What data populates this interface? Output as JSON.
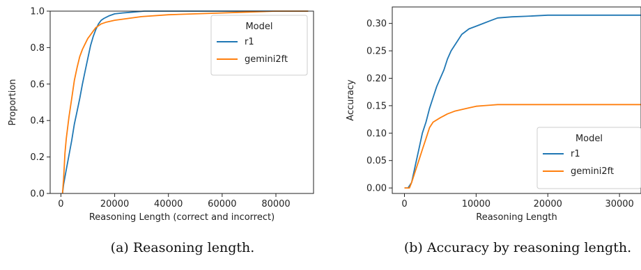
{
  "chart_data": [
    {
      "type": "line",
      "caption": "(a) Reasoning length.",
      "xlabel": "Reasoning Length (correct and incorrect)",
      "ylabel": "Proportion",
      "xlim": [
        -4000,
        94000
      ],
      "ylim": [
        0,
        1.0
      ],
      "xticks": [
        0,
        20000,
        40000,
        60000,
        80000
      ],
      "xtick_labels": [
        "0",
        "20000",
        "40000",
        "60000",
        "80000"
      ],
      "yticks": [
        0,
        0.2,
        0.4,
        0.6,
        0.8,
        1.0
      ],
      "ytick_labels": [
        "0.0",
        "0.2",
        "0.4",
        "0.6",
        "0.8",
        "1.0"
      ],
      "grid": false,
      "legend": {
        "title": "Model",
        "placement": "top-right"
      },
      "series": [
        {
          "name": "r1",
          "color": "#1f77b4",
          "points": [
            [
              600,
              0
            ],
            [
              1000,
              0.05
            ],
            [
              2000,
              0.13
            ],
            [
              3000,
              0.21
            ],
            [
              4000,
              0.29
            ],
            [
              5000,
              0.38
            ],
            [
              6000,
              0.45
            ],
            [
              7000,
              0.52
            ],
            [
              8000,
              0.6
            ],
            [
              9000,
              0.67
            ],
            [
              10000,
              0.74
            ],
            [
              11000,
              0.81
            ],
            [
              12000,
              0.86
            ],
            [
              13000,
              0.9
            ],
            [
              14000,
              0.93
            ],
            [
              15000,
              0.95
            ],
            [
              16000,
              0.96
            ],
            [
              18000,
              0.975
            ],
            [
              20000,
              0.985
            ],
            [
              23000,
              0.99
            ],
            [
              27000,
              0.995
            ],
            [
              31000,
              1.0
            ],
            [
              92000,
              1.0
            ]
          ]
        },
        {
          "name": "gemini2ft",
          "color": "#ff7f0e",
          "points": [
            [
              600,
              0
            ],
            [
              1000,
              0.08
            ],
            [
              1500,
              0.22
            ],
            [
              2000,
              0.3
            ],
            [
              3000,
              0.42
            ],
            [
              4000,
              0.52
            ],
            [
              5000,
              0.62
            ],
            [
              6000,
              0.69
            ],
            [
              7000,
              0.75
            ],
            [
              8000,
              0.79
            ],
            [
              9000,
              0.82
            ],
            [
              10000,
              0.85
            ],
            [
              11000,
              0.87
            ],
            [
              12000,
              0.89
            ],
            [
              13000,
              0.91
            ],
            [
              15000,
              0.93
            ],
            [
              17000,
              0.94
            ],
            [
              20000,
              0.95
            ],
            [
              25000,
              0.96
            ],
            [
              30000,
              0.97
            ],
            [
              40000,
              0.98
            ],
            [
              50000,
              0.985
            ],
            [
              60000,
              0.99
            ],
            [
              70000,
              0.995
            ],
            [
              80000,
              1.0
            ],
            [
              92000,
              1.0
            ]
          ]
        }
      ]
    },
    {
      "type": "line",
      "caption": "(b) Accuracy by reasoning length.",
      "xlabel": "Reasoning Length",
      "ylabel": "Accuracy",
      "xlim": [
        -1700,
        33000
      ],
      "ylim": [
        -0.01,
        0.33
      ],
      "xticks": [
        0,
        10000,
        20000,
        30000
      ],
      "xtick_labels": [
        "0",
        "10000",
        "20000",
        "30000"
      ],
      "yticks": [
        0,
        0.05,
        0.1,
        0.15,
        0.2,
        0.25,
        0.3
      ],
      "ytick_labels": [
        "0.00",
        "0.05",
        "0.10",
        "0.15",
        "0.20",
        "0.25",
        "0.30"
      ],
      "grid": false,
      "legend": {
        "title": "Model",
        "placement": "bottom-right"
      },
      "series": [
        {
          "name": "r1",
          "color": "#1f77b4",
          "points": [
            [
              0,
              0
            ],
            [
              500,
              0
            ],
            [
              1000,
              0.01
            ],
            [
              1500,
              0.04
            ],
            [
              2000,
              0.07
            ],
            [
              2500,
              0.1
            ],
            [
              3000,
              0.12
            ],
            [
              3500,
              0.145
            ],
            [
              4000,
              0.165
            ],
            [
              4500,
              0.185
            ],
            [
              5000,
              0.2
            ],
            [
              5500,
              0.215
            ],
            [
              6000,
              0.235
            ],
            [
              6500,
              0.25
            ],
            [
              7000,
              0.26
            ],
            [
              7500,
              0.27
            ],
            [
              8000,
              0.28
            ],
            [
              8500,
              0.285
            ],
            [
              9000,
              0.29
            ],
            [
              10000,
              0.295
            ],
            [
              11000,
              0.3
            ],
            [
              12000,
              0.305
            ],
            [
              13000,
              0.31
            ],
            [
              15000,
              0.312
            ],
            [
              17000,
              0.313
            ],
            [
              20000,
              0.315
            ],
            [
              25000,
              0.315
            ],
            [
              33000,
              0.315
            ]
          ]
        },
        {
          "name": "gemini2ft",
          "color": "#ff7f0e",
          "points": [
            [
              0,
              0
            ],
            [
              700,
              0
            ],
            [
              1000,
              0.01
            ],
            [
              1500,
              0.03
            ],
            [
              2000,
              0.05
            ],
            [
              2500,
              0.07
            ],
            [
              3000,
              0.09
            ],
            [
              3500,
              0.11
            ],
            [
              4000,
              0.12
            ],
            [
              5000,
              0.128
            ],
            [
              6000,
              0.135
            ],
            [
              7000,
              0.14
            ],
            [
              8000,
              0.143
            ],
            [
              9000,
              0.146
            ],
            [
              10000,
              0.149
            ],
            [
              11000,
              0.15
            ],
            [
              12000,
              0.151
            ],
            [
              13000,
              0.152
            ],
            [
              15000,
              0.152
            ],
            [
              20000,
              0.152
            ],
            [
              33000,
              0.152
            ]
          ]
        }
      ]
    }
  ]
}
